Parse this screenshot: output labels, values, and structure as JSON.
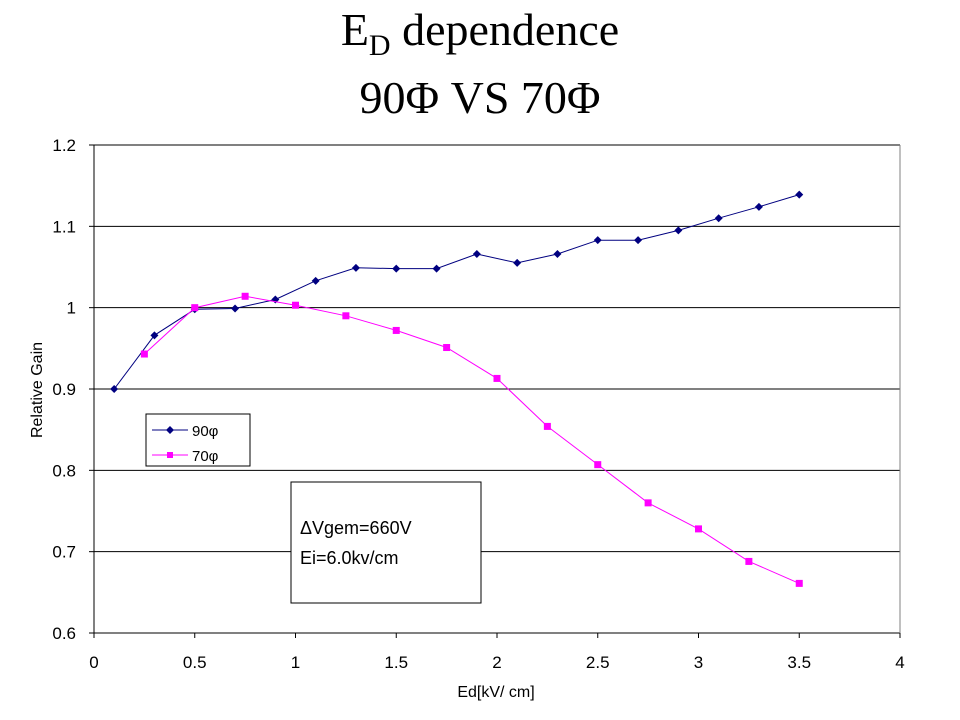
{
  "title": {
    "main": "E",
    "subscript": "D",
    "rest": " dependence",
    "line2": "90Φ VS 70Φ"
  },
  "colors": {
    "series_90": "#000080",
    "series_70": "#ff00ff",
    "grid": "#000000"
  },
  "chart_data": {
    "type": "line",
    "xlabel": "Ed[kV/ cm]",
    "ylabel": "Relative Gain",
    "xlim": [
      0,
      4
    ],
    "ylim": [
      0.6,
      1.2
    ],
    "x_ticks": [
      "0",
      "0.5",
      "1",
      "1.5",
      "2",
      "2.5",
      "3",
      "3.5",
      "4"
    ],
    "y_ticks": [
      "0.6",
      "0.7",
      "0.8",
      "0.9",
      "1",
      "1.1",
      "1.2"
    ],
    "grid": "horizontal",
    "legend_position": "left",
    "series": [
      {
        "name": "90φ",
        "marker": "diamond",
        "x": [
          0.1,
          0.3,
          0.5,
          0.7,
          0.9,
          1.1,
          1.3,
          1.5,
          1.7,
          1.9,
          2.1,
          2.3,
          2.5,
          2.7,
          2.9,
          3.1,
          3.3,
          3.5
        ],
        "y": [
          0.9,
          0.966,
          0.998,
          0.999,
          1.01,
          1.033,
          1.049,
          1.048,
          1.048,
          1.066,
          1.055,
          1.066,
          1.083,
          1.083,
          1.095,
          1.11,
          1.124,
          1.139
        ]
      },
      {
        "name": "70φ",
        "marker": "square",
        "x": [
          0.25,
          0.5,
          0.75,
          1.0,
          1.25,
          1.5,
          1.75,
          2.0,
          2.25,
          2.5,
          2.75,
          3.0,
          3.25,
          3.5
        ],
        "y": [
          0.943,
          1.0,
          1.014,
          1.003,
          0.99,
          0.972,
          0.951,
          0.913,
          0.854,
          0.807,
          0.76,
          0.728,
          0.688,
          0.661
        ]
      }
    ],
    "annotations": [
      "ΔVgem=660V",
      "Ei=6.0kv/cm"
    ]
  }
}
